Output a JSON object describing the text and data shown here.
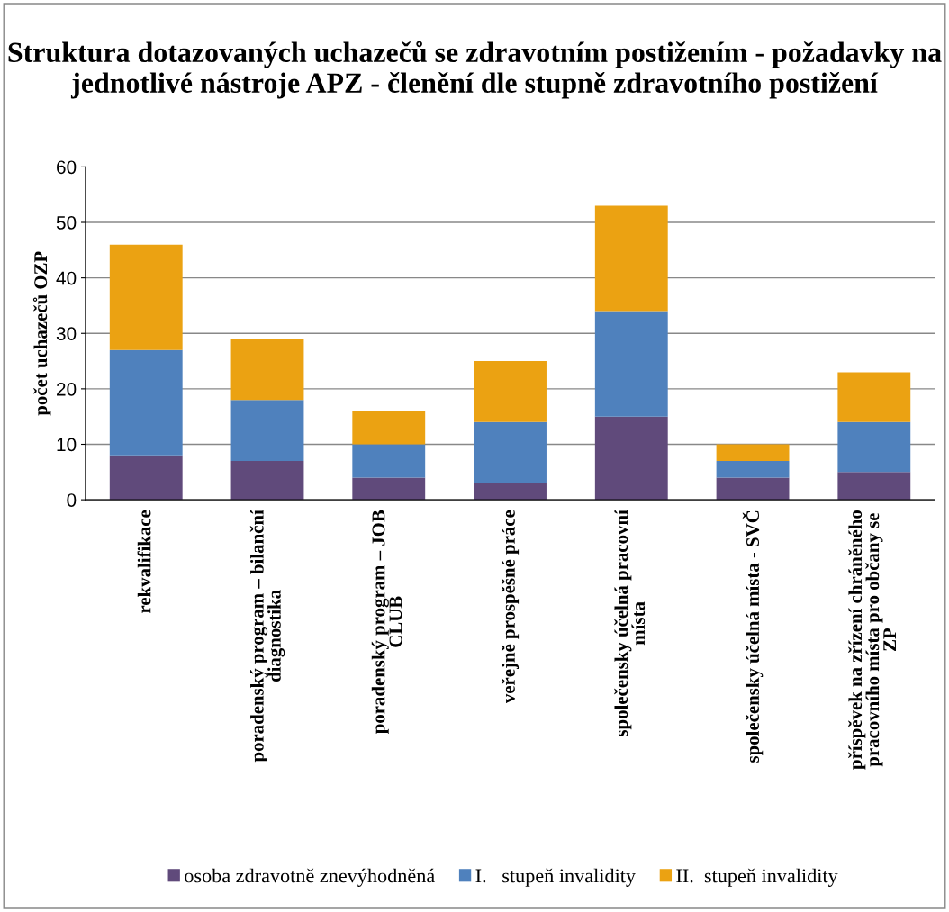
{
  "chart_data": {
    "type": "bar",
    "stacked": true,
    "title": "Struktura dotazovaných uchazečů se zdravotním postižením - požadavky na jednotlivé nástroje APZ - členění dle stupně zdravotního postižení",
    "ylabel": "počet uchazečů OZP",
    "categories": [
      "rekvalifikace",
      "poradenský program – bilanční\ndiagnostika",
      "poradenský program – JOB\nCLUB",
      "veřejně prospěšné práce",
      "společensky účelná pracovní\nmísta",
      "společensky účelná místa - SVČ",
      "příspěvek na zřízení chráněného\npracovního místa pro občany se\nZP"
    ],
    "series": [
      {
        "name": "osoba zdravotně znevýhodněná",
        "color": "#604a7b",
        "values": [
          8,
          7,
          4,
          3,
          15,
          4,
          5
        ]
      },
      {
        "name": "I.   stupeň invalidity",
        "color": "#4f81bd",
        "values": [
          19,
          11,
          6,
          11,
          19,
          3,
          9
        ]
      },
      {
        "name": "II.  stupeň invalidity",
        "color": "#eba212",
        "values": [
          19,
          11,
          6,
          11,
          19,
          3,
          9
        ]
      }
    ],
    "ylim": [
      0,
      60
    ],
    "yticks": [
      0,
      10,
      20,
      30,
      40,
      50,
      60
    ],
    "grid": "y",
    "legend": "bottom"
  }
}
